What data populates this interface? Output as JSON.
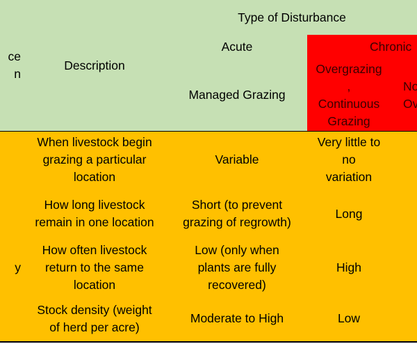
{
  "header": {
    "first_col_fragment_1": "ce",
    "first_col_fragment_2": "n",
    "description": "Description",
    "type_of_disturbance": "Type of Disturbance",
    "acute": "Acute",
    "chronic": "Chronic",
    "managed_grazing": "Managed Grazing",
    "overgrazing_line1": "Overgrazing",
    "overgrazing_line2": ",",
    "overgrazing_line3": "Continuous",
    "overgrazing_line4": "Grazing",
    "next_col_line1": "No",
    "next_col_line2": "Ov"
  },
  "rows": [
    {
      "description": [
        "When livestock begin",
        "grazing a particular",
        "location"
      ],
      "managed": [
        "Variable"
      ],
      "overgrazing": [
        "Very little to",
        "no",
        "variation"
      ]
    },
    {
      "description": [
        "How long livestock",
        "remain in one location"
      ],
      "managed": [
        "Short (to prevent",
        "grazing of regrowth)"
      ],
      "overgrazing": [
        "Long"
      ]
    },
    {
      "first_col_fragment": "y",
      "description": [
        "How often livestock",
        "return to the same",
        "location"
      ],
      "managed": [
        "Low (only when",
        "plants are fully",
        "recovered)"
      ],
      "overgrazing": [
        "High"
      ]
    },
    {
      "description": [
        "Stock density (weight",
        "of herd per acre)"
      ],
      "managed": [
        "Moderate to High"
      ],
      "overgrazing": [
        "Low"
      ]
    }
  ],
  "colors": {
    "header_green": "#c6e0b4",
    "chronic_red": "#ff0000",
    "body_amber": "#ffc000",
    "grid": "#000000"
  }
}
